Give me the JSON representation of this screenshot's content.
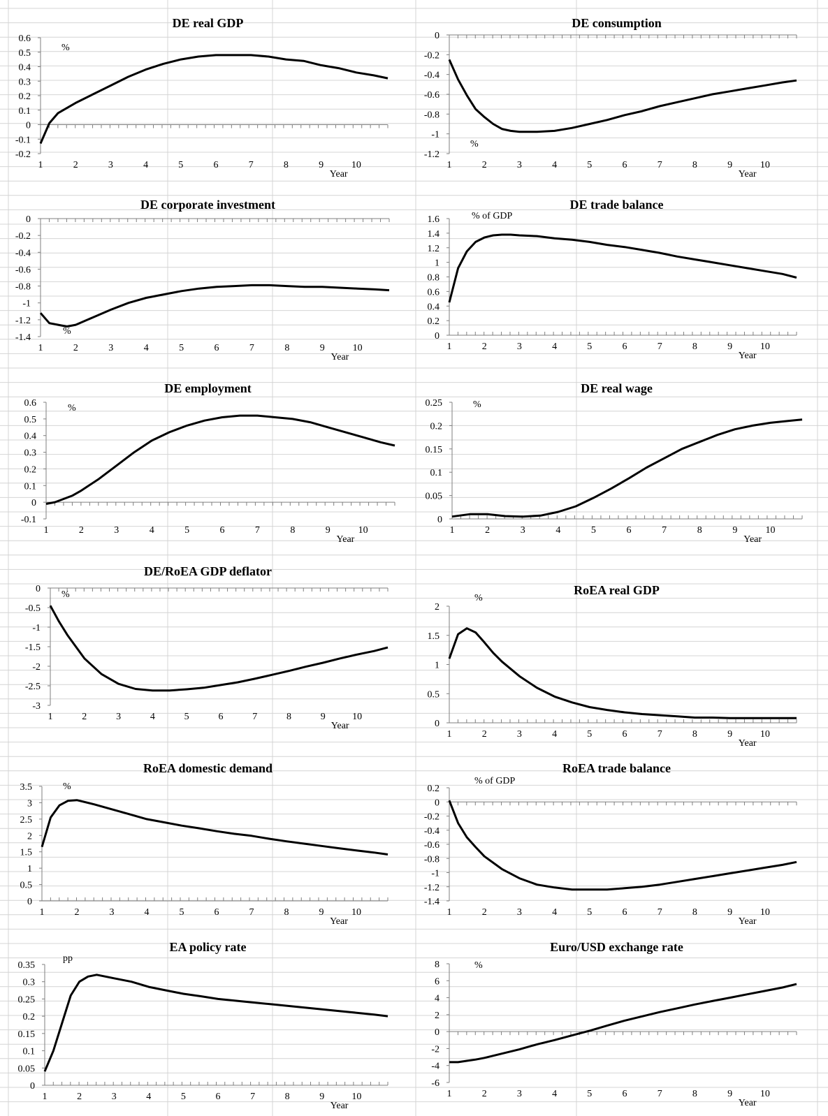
{
  "chart_data": [
    {
      "type": "line",
      "title": "DE real GDP",
      "unit": "%",
      "xlabel": "Year",
      "xticks": [
        "1",
        "2",
        "3",
        "4",
        "5",
        "6",
        "7",
        "8",
        "9",
        "10"
      ],
      "xlim": [
        1,
        10.9
      ],
      "yticks": [
        "0.6",
        "0.5",
        "0.4",
        "0.3",
        "0.2",
        "0.1",
        "0",
        "-0.1",
        "-0.2"
      ],
      "ylim": [
        -0.2,
        0.6
      ],
      "x": [
        1,
        1.25,
        1.5,
        2,
        2.5,
        3,
        3.5,
        4,
        4.5,
        5,
        5.5,
        6,
        6.5,
        7,
        7.5,
        8,
        8.5,
        9,
        9.5,
        10,
        10.5,
        10.9
      ],
      "y": [
        -0.13,
        0.01,
        0.08,
        0.15,
        0.21,
        0.27,
        0.33,
        0.38,
        0.42,
        0.45,
        0.47,
        0.48,
        0.48,
        0.48,
        0.47,
        0.45,
        0.44,
        0.41,
        0.39,
        0.36,
        0.34,
        0.32
      ]
    },
    {
      "type": "line",
      "title": "DE consumption",
      "unit": "%",
      "xlabel": "Year",
      "xticks": [
        "1",
        "2",
        "3",
        "4",
        "5",
        "6",
        "7",
        "8",
        "9",
        "10"
      ],
      "xlim": [
        1,
        10.9
      ],
      "yticks": [
        "0",
        "-0.2",
        "-0.4",
        "-0.6",
        "-0.8",
        "-1",
        "-1.2"
      ],
      "ylim": [
        -1.2,
        0
      ],
      "x": [
        1,
        1.25,
        1.5,
        1.75,
        2,
        2.25,
        2.5,
        2.75,
        3,
        3.5,
        4,
        4.5,
        5,
        5.5,
        6,
        6.5,
        7,
        7.5,
        8,
        8.5,
        9,
        9.5,
        10,
        10.5,
        10.9
      ],
      "y": [
        -0.25,
        -0.45,
        -0.61,
        -0.75,
        -0.83,
        -0.9,
        -0.95,
        -0.97,
        -0.98,
        -0.98,
        -0.97,
        -0.94,
        -0.9,
        -0.86,
        -0.81,
        -0.77,
        -0.72,
        -0.68,
        -0.64,
        -0.6,
        -0.57,
        -0.54,
        -0.51,
        -0.48,
        -0.46
      ]
    },
    {
      "type": "line",
      "title": "DE corporate  investment",
      "unit": "%",
      "xlabel": "Year",
      "xticks": [
        "1",
        "2",
        "3",
        "4",
        "5",
        "6",
        "7",
        "8",
        "9",
        "10"
      ],
      "xlim": [
        1,
        10.9
      ],
      "yticks": [
        "0",
        "-0.2",
        "-0.4",
        "-0.6",
        "-0.8",
        "-1",
        "-1.2",
        "-1.4"
      ],
      "ylim": [
        -1.4,
        0
      ],
      "x": [
        1,
        1.25,
        1.5,
        1.75,
        2,
        2.5,
        3,
        3.5,
        4,
        4.5,
        5,
        5.5,
        6,
        6.5,
        7,
        7.5,
        8,
        8.5,
        9,
        9.5,
        10,
        10.5,
        10.9
      ],
      "y": [
        -1.12,
        -1.24,
        -1.26,
        -1.28,
        -1.26,
        -1.17,
        -1.08,
        -1,
        -0.94,
        -0.9,
        -0.86,
        -0.83,
        -0.81,
        -0.8,
        -0.79,
        -0.79,
        -0.8,
        -0.81,
        -0.81,
        -0.82,
        -0.83,
        -0.84,
        -0.85
      ]
    },
    {
      "type": "line",
      "title": "DE trade  balance",
      "unit": "% of GDP",
      "xlabel": "Year",
      "xticks": [
        "1",
        "2",
        "3",
        "4",
        "5",
        "6",
        "7",
        "8",
        "9",
        "10"
      ],
      "xlim": [
        1,
        10.9
      ],
      "yticks": [
        "1.6",
        "1.4",
        "1.2",
        "1",
        "0.8",
        "0.6",
        "0.4",
        "0.2",
        "0"
      ],
      "ylim": [
        0,
        1.6
      ],
      "x": [
        1,
        1.25,
        1.5,
        1.75,
        2,
        2.25,
        2.5,
        2.75,
        3,
        3.5,
        4,
        4.5,
        5,
        5.5,
        6,
        6.5,
        7,
        7.5,
        8,
        8.5,
        9,
        9.5,
        10,
        10.5,
        10.9
      ],
      "y": [
        0.45,
        0.92,
        1.15,
        1.28,
        1.34,
        1.37,
        1.38,
        1.38,
        1.37,
        1.36,
        1.33,
        1.31,
        1.28,
        1.24,
        1.21,
        1.17,
        1.13,
        1.08,
        1.04,
        1,
        0.96,
        0.92,
        0.88,
        0.84,
        0.79
      ]
    },
    {
      "type": "line",
      "title": "DE employment",
      "unit": "%",
      "xlabel": "Year",
      "xticks": [
        "1",
        "2",
        "3",
        "4",
        "5",
        "6",
        "7",
        "8",
        "9",
        "10"
      ],
      "xlim": [
        1,
        10.9
      ],
      "yticks": [
        "0.6",
        "0.5",
        "0.4",
        "0.3",
        "0.2",
        "0.1",
        "0",
        "-0.1"
      ],
      "ylim": [
        -0.1,
        0.6
      ],
      "x": [
        1,
        1.25,
        1.5,
        1.75,
        2,
        2.5,
        3,
        3.5,
        4,
        4.5,
        5,
        5.5,
        6,
        6.5,
        7,
        7.5,
        8,
        8.5,
        9,
        9.5,
        10,
        10.5,
        10.9
      ],
      "y": [
        -0.01,
        0,
        0.02,
        0.04,
        0.07,
        0.14,
        0.22,
        0.3,
        0.37,
        0.42,
        0.46,
        0.49,
        0.51,
        0.52,
        0.52,
        0.51,
        0.5,
        0.48,
        0.45,
        0.42,
        0.39,
        0.36,
        0.34
      ]
    },
    {
      "type": "line",
      "title": "DE real wage",
      "unit": "%",
      "xlabel": "Year",
      "xticks": [
        "1",
        "2",
        "3",
        "4",
        "5",
        "6",
        "7",
        "8",
        "9",
        "10"
      ],
      "xlim": [
        1,
        10.9
      ],
      "yticks": [
        "0.25",
        "0.2",
        "0.15",
        "0.1",
        "0.05",
        "0"
      ],
      "ylim": [
        0,
        0.25
      ],
      "x": [
        1,
        1.5,
        2,
        2.5,
        3,
        3.5,
        4,
        4.5,
        5,
        5.5,
        6,
        6.5,
        7,
        7.5,
        8,
        8.5,
        9,
        9.5,
        10,
        10.5,
        10.9
      ],
      "y": [
        0.005,
        0.01,
        0.01,
        0.006,
        0.005,
        0.007,
        0.015,
        0.027,
        0.045,
        0.065,
        0.087,
        0.11,
        0.13,
        0.15,
        0.165,
        0.18,
        0.192,
        0.2,
        0.206,
        0.21,
        0.213
      ]
    },
    {
      "type": "line",
      "title": "DE/RoEA GDP deflator",
      "unit": "%",
      "xlabel": "Year",
      "xticks": [
        "1",
        "2",
        "3",
        "4",
        "5",
        "6",
        "7",
        "8",
        "9",
        "10"
      ],
      "xlim": [
        1,
        10.9
      ],
      "yticks": [
        "0",
        "-0.5",
        "-1",
        "-1.5",
        "-2",
        "-2.5",
        "-3"
      ],
      "ylim": [
        -3,
        0
      ],
      "x": [
        1,
        1.25,
        1.5,
        1.75,
        2,
        2.5,
        3,
        3.5,
        4,
        4.5,
        5,
        5.5,
        6,
        6.5,
        7,
        7.5,
        8,
        8.5,
        9,
        9.5,
        10,
        10.5,
        10.9
      ],
      "y": [
        -0.45,
        -0.85,
        -1.2,
        -1.5,
        -1.8,
        -2.2,
        -2.45,
        -2.58,
        -2.62,
        -2.62,
        -2.59,
        -2.55,
        -2.48,
        -2.41,
        -2.32,
        -2.22,
        -2.12,
        -2.01,
        -1.91,
        -1.8,
        -1.7,
        -1.61,
        -1.52
      ]
    },
    {
      "type": "line",
      "title": "RoEA real GDP",
      "unit": "%",
      "xlabel": "Year",
      "xticks": [
        "1",
        "2",
        "3",
        "4",
        "5",
        "6",
        "7",
        "8",
        "9",
        "10"
      ],
      "xlim": [
        1,
        10.9
      ],
      "yticks": [
        "2",
        "1.5",
        "1",
        "0.5",
        "0"
      ],
      "ylim": [
        0,
        2
      ],
      "x": [
        1,
        1.25,
        1.5,
        1.75,
        2,
        2.25,
        2.5,
        3,
        3.5,
        4,
        4.5,
        5,
        5.5,
        6,
        6.5,
        7,
        7.5,
        8,
        8.5,
        9,
        9.5,
        10,
        10.5,
        10.9
      ],
      "y": [
        1.1,
        1.52,
        1.62,
        1.55,
        1.38,
        1.2,
        1.05,
        0.8,
        0.6,
        0.45,
        0.35,
        0.27,
        0.22,
        0.18,
        0.15,
        0.13,
        0.11,
        0.09,
        0.09,
        0.08,
        0.08,
        0.08,
        0.08,
        0.08
      ]
    },
    {
      "type": "line",
      "title": "RoEA domestic demand",
      "unit": "%",
      "xlabel": "Year",
      "xticks": [
        "1",
        "2",
        "3",
        "4",
        "5",
        "6",
        "7",
        "8",
        "9",
        "10"
      ],
      "xlim": [
        1,
        10.9
      ],
      "yticks": [
        "3.5",
        "3",
        "2.5",
        "2",
        "1.5",
        "1",
        "0.5",
        "0"
      ],
      "ylim": [
        0,
        3.5
      ],
      "x": [
        1,
        1.25,
        1.5,
        1.75,
        2,
        2.5,
        3,
        3.5,
        4,
        4.5,
        5,
        5.5,
        6,
        6.5,
        7,
        7.5,
        8,
        8.5,
        9,
        9.5,
        10,
        10.5,
        10.9
      ],
      "y": [
        1.65,
        2.55,
        2.92,
        3.06,
        3.08,
        2.95,
        2.8,
        2.65,
        2.5,
        2.4,
        2.3,
        2.22,
        2.13,
        2.05,
        1.99,
        1.9,
        1.82,
        1.75,
        1.68,
        1.61,
        1.54,
        1.48,
        1.42
      ]
    },
    {
      "type": "line",
      "title": "RoEA trade balance",
      "unit": "% of GDP",
      "xlabel": "Year",
      "xticks": [
        "1",
        "2",
        "3",
        "4",
        "5",
        "6",
        "7",
        "8",
        "9",
        "10"
      ],
      "xlim": [
        1,
        10.9
      ],
      "yticks": [
        "0.2",
        "0",
        "-0.2",
        "-0.4",
        "-0.6",
        "-0.8",
        "-1",
        "-1.2",
        "-1.4"
      ],
      "ylim": [
        -1.4,
        0.2
      ],
      "x": [
        1,
        1.25,
        1.5,
        1.75,
        2,
        2.5,
        3,
        3.5,
        4,
        4.5,
        5,
        5.5,
        6,
        6.5,
        7,
        7.5,
        8,
        8.5,
        9,
        9.5,
        10,
        10.5,
        10.9
      ],
      "y": [
        0.02,
        -0.3,
        -0.5,
        -0.64,
        -0.77,
        -0.95,
        -1.08,
        -1.17,
        -1.21,
        -1.24,
        -1.24,
        -1.24,
        -1.22,
        -1.2,
        -1.17,
        -1.13,
        -1.09,
        -1.05,
        -1.01,
        -0.97,
        -0.93,
        -0.89,
        -0.85
      ]
    },
    {
      "type": "line",
      "title": "EA  policy  rate",
      "unit": "pp",
      "xlabel": "Year",
      "xticks": [
        "1",
        "2",
        "3",
        "4",
        "5",
        "6",
        "7",
        "8",
        "9",
        "10"
      ],
      "xlim": [
        1,
        10.9
      ],
      "yticks": [
        "0.35",
        "0.3",
        "0.25",
        "0.2",
        "0.15",
        "0.1",
        "0.05",
        "0"
      ],
      "ylim": [
        0,
        0.35
      ],
      "x": [
        1,
        1.25,
        1.5,
        1.75,
        2,
        2.25,
        2.5,
        3,
        3.5,
        4,
        4.5,
        5,
        5.5,
        6,
        6.5,
        7,
        7.5,
        8,
        8.5,
        9,
        9.5,
        10,
        10.5,
        10.9
      ],
      "y": [
        0.04,
        0.1,
        0.18,
        0.26,
        0.3,
        0.315,
        0.32,
        0.31,
        0.3,
        0.285,
        0.275,
        0.265,
        0.258,
        0.25,
        0.245,
        0.24,
        0.235,
        0.23,
        0.225,
        0.22,
        0.215,
        0.21,
        0.205,
        0.2
      ]
    },
    {
      "type": "line",
      "title": "Euro/USD  exchange rate",
      "unit": "%",
      "xlabel": "Year",
      "xticks": [
        "1",
        "2",
        "3",
        "4",
        "5",
        "6",
        "7",
        "8",
        "9",
        "10"
      ],
      "xlim": [
        1,
        10.9
      ],
      "yticks": [
        "8",
        "6",
        "4",
        "2",
        "0",
        "-2",
        "-4",
        "-6"
      ],
      "ylim": [
        -6,
        8
      ],
      "x": [
        1,
        1.25,
        1.5,
        1.75,
        2,
        2.5,
        3,
        3.5,
        4,
        4.5,
        5,
        5.5,
        6,
        6.5,
        7,
        7.5,
        8,
        8.5,
        9,
        9.5,
        10,
        10.5,
        10.9
      ],
      "y": [
        -3.6,
        -3.6,
        -3.45,
        -3.3,
        -3.1,
        -2.6,
        -2.1,
        -1.5,
        -1,
        -0.45,
        0.1,
        0.7,
        1.3,
        1.8,
        2.3,
        2.75,
        3.2,
        3.6,
        4,
        4.4,
        4.8,
        5.2,
        5.6
      ]
    }
  ]
}
